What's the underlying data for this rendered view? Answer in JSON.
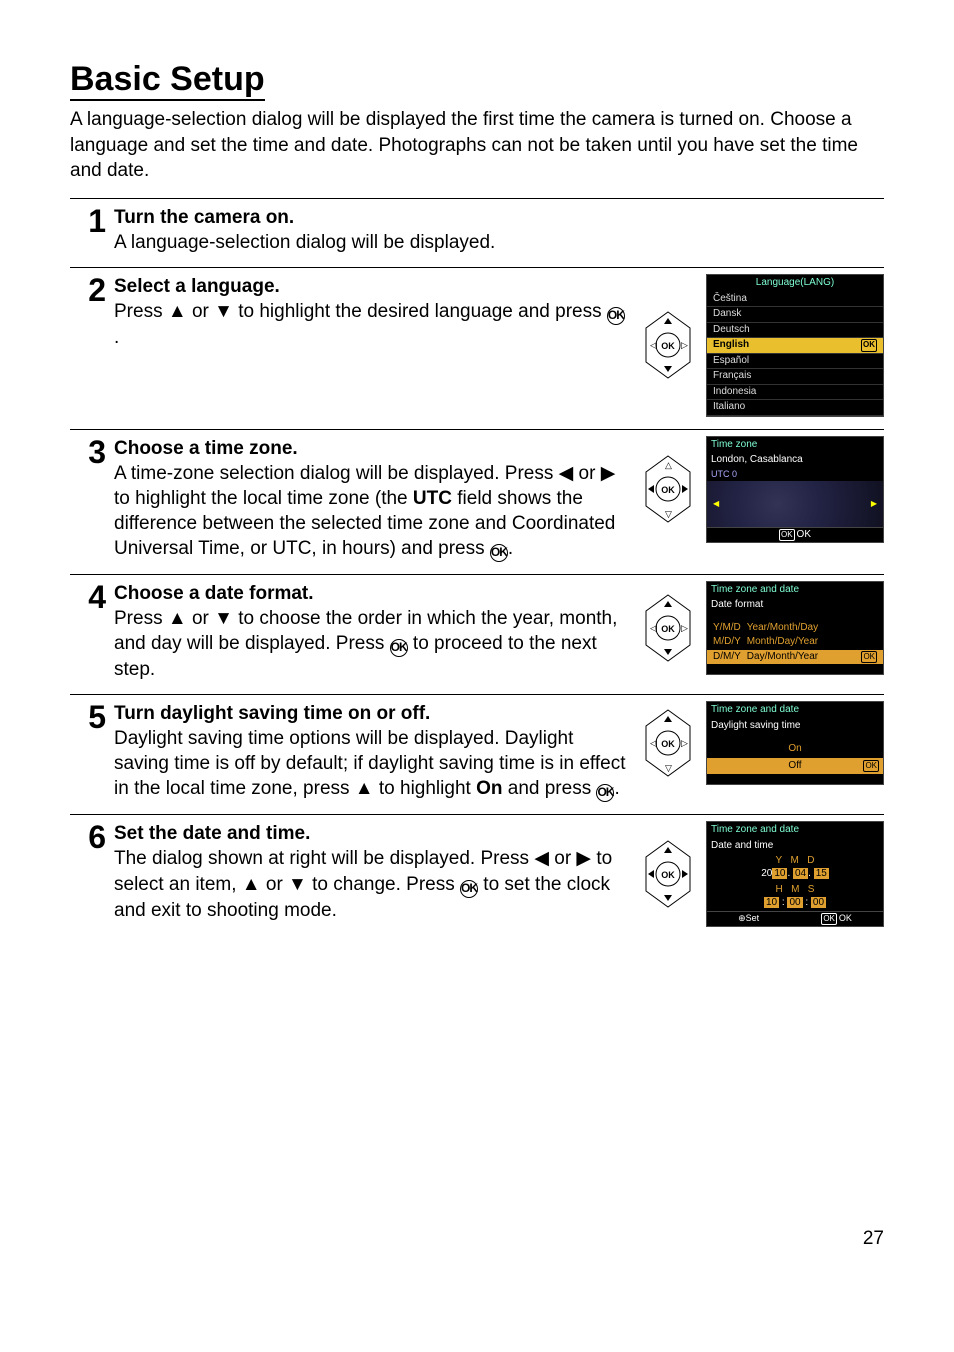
{
  "title": "Basic Setup",
  "intro": "A language-selection dialog will be displayed the first time the camera is turned on. Choose a language and set the time and date. Photographs can not be taken until you have set the time and date.",
  "page_number": "27",
  "tab_icon": "⚑",
  "ok_glyph": "OK",
  "arrows": {
    "up": "▲",
    "down": "▼",
    "left": "◀",
    "right": "▶"
  },
  "steps": [
    {
      "num": "1",
      "title": "Turn the camera on.",
      "desc": "A language-selection dialog will be displayed."
    },
    {
      "num": "2",
      "title": "Select a language.",
      "desc_parts": [
        "Press ",
        "▲",
        " or ",
        "▼",
        " to highlight the desired language and press ",
        "OK",
        "."
      ]
    },
    {
      "num": "3",
      "title": "Choose a time zone.",
      "desc_parts": [
        "A time-zone selection dialog will be displayed. Press ",
        "◀",
        " or ",
        "▶",
        " to highlight the local time zone (the ",
        "UTC",
        " field shows the difference between the selected time zone and Coordinated Universal Time, or UTC, in hours) and press ",
        "OK",
        "."
      ]
    },
    {
      "num": "4",
      "title": "Choose a date format.",
      "desc_parts": [
        "Press ",
        "▲",
        " or ",
        "▼",
        " to choose the order in which the year, month, and day will be displayed. Press ",
        "OK",
        " to proceed to the next step."
      ]
    },
    {
      "num": "5",
      "title": "Turn daylight saving time on or off.",
      "desc_parts": [
        "Daylight saving time options will be displayed. Daylight saving time is off by default; if daylight saving time is in effect in the local time zone, press ",
        "▲",
        " to highlight ",
        "On",
        " and press ",
        "OK",
        "."
      ]
    },
    {
      "num": "6",
      "title": "Set the date and time.",
      "desc_parts": [
        "The dialog shown at right will be displayed. Press ",
        "◀",
        " or ",
        "▶",
        " to select an item, ",
        "▲",
        " or ",
        "▼",
        " to change. Press ",
        "OK",
        " to set the clock and exit to shooting mode."
      ]
    }
  ],
  "lcd_language": {
    "header": "Language(LANG)",
    "items": [
      "Čeština",
      "Dansk",
      "Deutsch",
      "English",
      "Español",
      "Français",
      "Indonesia",
      "Italiano"
    ],
    "selected_index": 3
  },
  "lcd_timezone": {
    "header": "Time zone",
    "city": "London, Casablanca",
    "utc": "UTC 0",
    "footer_ok": "OK"
  },
  "lcd_dateformat": {
    "header": "Time zone and date",
    "sub": "Date format",
    "options": [
      {
        "code": "Y/M/D",
        "label": "Year/Month/Day"
      },
      {
        "code": "M/D/Y",
        "label": "Month/Day/Year"
      },
      {
        "code": "D/M/Y",
        "label": "Day/Month/Year"
      }
    ],
    "selected_index": 2
  },
  "lcd_dst": {
    "header": "Time zone and date",
    "sub": "Daylight saving time",
    "options": [
      "On",
      "Off"
    ],
    "selected_index": 1
  },
  "lcd_datetime": {
    "header": "Time zone and date",
    "sub": "Date and time",
    "labels_top": [
      "Y",
      "M",
      "D"
    ],
    "values_top": [
      "2010",
      "04",
      "15"
    ],
    "labels_bot": [
      "H",
      "M",
      "S"
    ],
    "values_bot": [
      "10",
      "00",
      "00"
    ],
    "set_label": "Set",
    "ok_label": "OK"
  },
  "colors": {
    "highlight": "#eabf2e",
    "lcd_bg": "#000000",
    "lcd_text": "#ffffff",
    "lcd_accent": "#7fffd4"
  }
}
